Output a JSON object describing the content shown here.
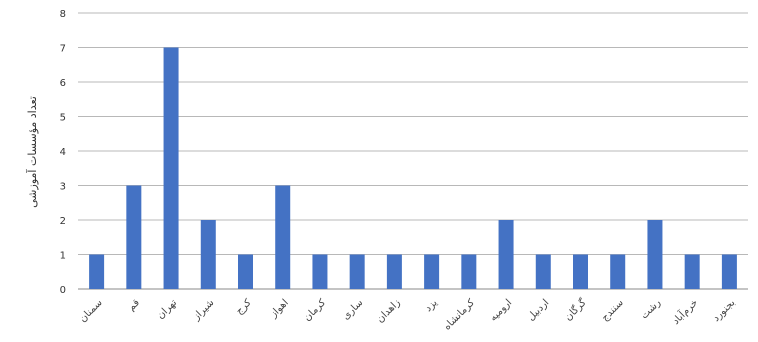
{
  "chart_data": {
    "type": "bar",
    "title": "",
    "ylabel": "تعداد مؤسسات آموزشی",
    "xlabel": "",
    "ylim": [
      0,
      8
    ],
    "yticks": [
      0,
      1,
      2,
      3,
      4,
      5,
      6,
      7,
      8
    ],
    "grid": true,
    "categories": [
      "سمنان",
      "قم",
      "تهران",
      "شیراز",
      "کرج",
      "اهواز",
      "کرمان",
      "ساری",
      "زاهدان",
      "یزد",
      "کرمانشاه",
      "ارومیه",
      "اردبیل",
      "گرگان",
      "سنندج",
      "رشت",
      "خرم‌آباد",
      "بجنورد"
    ],
    "values": [
      1,
      3,
      7,
      2,
      1,
      3,
      1,
      1,
      1,
      1,
      1,
      2,
      1,
      1,
      1,
      2,
      1,
      1
    ],
    "bar_color": "#4472c4"
  }
}
